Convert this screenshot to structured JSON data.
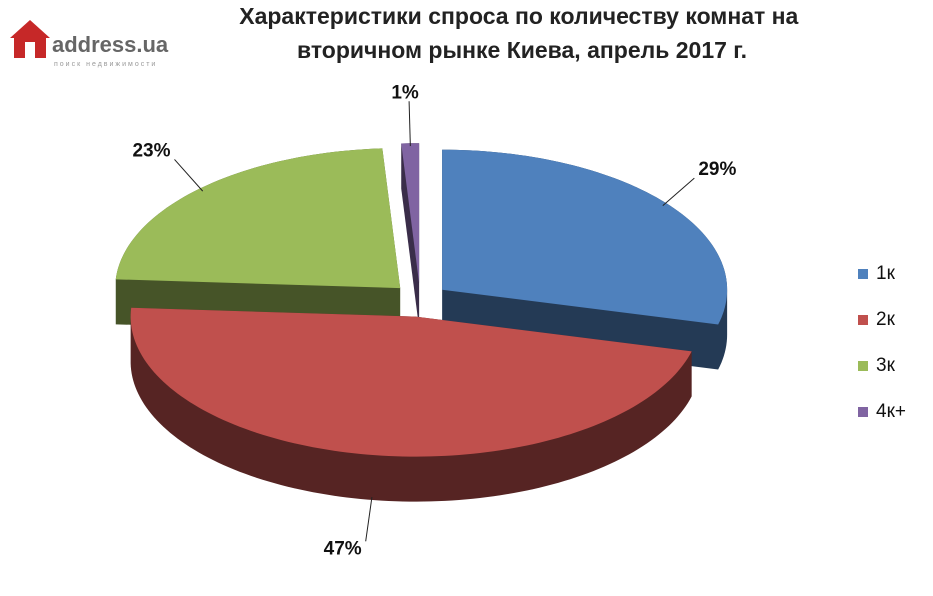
{
  "logo": {
    "name": "address.ua",
    "tagline": "поиск недвижимости"
  },
  "chart_data": {
    "type": "pie3d",
    "title": "Характеристики спроса по количеству комнат на вторичном рынке Киева, апрель 2017 г.",
    "categories": [
      "1к",
      "2к",
      "3к",
      "4к+"
    ],
    "values": [
      29,
      47,
      23,
      1
    ],
    "value_labels": [
      "29%",
      "47%",
      "23%",
      "1%"
    ],
    "colors": [
      "#4f81bd",
      "#c0504d",
      "#9bbb59",
      "#8064a2"
    ],
    "legend": "right"
  }
}
